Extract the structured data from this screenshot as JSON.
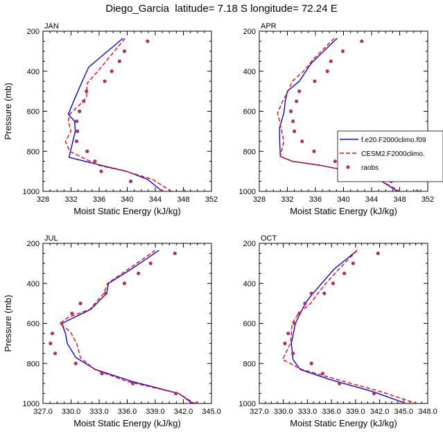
{
  "title": {
    "station": "Diego_Garcia",
    "latitude_label": "latitude=",
    "latitude_value": "7.18 S",
    "longitude_label": "longitude=",
    "longitude_value": "72.24 E"
  },
  "legend": {
    "location": "right, overlapping the APR panel",
    "entries": [
      {
        "label": "f.e20.F2000climo.f09",
        "style": "solid-line",
        "color": "#0000ff"
      },
      {
        "label": "CESM2.F2000climo.",
        "style": "dashed-line",
        "color": "#ff0000"
      },
      {
        "label": "raobs",
        "style": "dot",
        "color": "#b03060"
      }
    ]
  },
  "chart_data": [
    {
      "type": "line",
      "title": "JAN",
      "xlabel": "Moist Static Energy (kJ/kg)",
      "ylabel": "Pressure (mb)",
      "xlim": [
        328,
        352
      ],
      "ylim": [
        200,
        1000
      ],
      "y_inverted": true,
      "xticks": [
        328,
        332,
        336,
        340,
        344,
        348,
        352
      ],
      "xtick_labels": [
        "328",
        "332",
        "336",
        "340",
        "344",
        "348",
        "352"
      ],
      "yticks": [
        200,
        400,
        600,
        800,
        1000
      ],
      "ytick_labels": [
        "200",
        "400",
        "600",
        "800",
        "1000"
      ],
      "series": [
        {
          "name": "f.e20.F2000climo.f09",
          "style": "solid",
          "color": "#0000ff",
          "x": [
            339.4,
            334.5,
            333.6,
            332.6,
            331.6,
            332.5,
            332.6,
            331.7,
            336.3,
            339.9,
            342.9,
            345.0
          ],
          "y": [
            235,
            380,
            450,
            530,
            615,
            650,
            700,
            830,
            870,
            900,
            940,
            1000
          ]
        },
        {
          "name": "CESM2.F2000climo.",
          "style": "dashed",
          "color": "#ff0000",
          "x": [
            339.7,
            337.7,
            335.8,
            334.3,
            334.2,
            333.3,
            331.8,
            331.6,
            332.0,
            331.2,
            331.8,
            335.9,
            339.8,
            343.6,
            346.3
          ],
          "y": [
            235,
            320,
            400,
            460,
            530,
            565,
            615,
            650,
            700,
            750,
            800,
            870,
            900,
            940,
            1000
          ]
        },
        {
          "name": "raobs",
          "style": "markers",
          "color": "#b03060",
          "x": [
            342.9,
            339.6,
            338.9,
            337.8,
            336.8,
            334.2,
            333.8,
            333.2,
            332.8,
            332.9,
            332.8,
            334.3,
            335.4,
            336.3,
            340.5,
            344.9,
            348.1
          ],
          "y": [
            250,
            300,
            350,
            400,
            450,
            500,
            550,
            600,
            650,
            700,
            750,
            800,
            850,
            900,
            950,
            1000,
            1000
          ]
        }
      ]
    },
    {
      "type": "line",
      "title": "APR",
      "xlabel": "Moist Static Energy (kJ/kg)",
      "ylabel": "",
      "xlim": [
        328,
        352
      ],
      "ylim": [
        200,
        1000
      ],
      "y_inverted": true,
      "xticks": [
        328,
        332,
        336,
        340,
        344,
        348,
        352
      ],
      "xtick_labels": [
        "328",
        "332",
        "336",
        "340",
        "344",
        "348",
        "352"
      ],
      "yticks": [
        200,
        400,
        600,
        800,
        1000
      ],
      "ytick_labels": [
        "200",
        "400",
        "600",
        "800",
        "1000"
      ],
      "series": [
        {
          "name": "f.e20.F2000climo.f09",
          "style": "solid",
          "color": "#0000ff",
          "x": [
            339.1,
            335.4,
            333.7,
            332.0,
            331.7,
            331.5,
            330.9,
            330.9,
            331.0,
            332.7,
            336.7,
            341.0,
            345.0,
            347.7
          ],
          "y": [
            235,
            360,
            450,
            500,
            550,
            610,
            680,
            750,
            825,
            850,
            870,
            900,
            940,
            1000
          ]
        },
        {
          "name": "CESM2.F2000climo.",
          "style": "dashed",
          "color": "#ff0000",
          "x": [
            338.7,
            335.7,
            334.3,
            332.7,
            332.1,
            331.2,
            330.6,
            330.9,
            331.5,
            331.0,
            332.7,
            336.7,
            341.0,
            345.0,
            348.0
          ],
          "y": [
            235,
            340,
            400,
            450,
            500,
            560,
            610,
            650,
            750,
            825,
            850,
            870,
            900,
            940,
            1000
          ]
        },
        {
          "name": "raobs",
          "style": "markers",
          "color": "#b03060",
          "x": [
            342.6,
            339.9,
            338.2,
            337.7,
            335.9,
            333.7,
            333.3,
            332.5,
            332.8,
            333.0,
            334.1,
            335.8,
            338.8,
            342.8,
            346.8,
            350.5
          ],
          "y": [
            250,
            300,
            350,
            400,
            450,
            500,
            550,
            600,
            650,
            700,
            750,
            800,
            850,
            900,
            950,
            1000
          ]
        }
      ]
    },
    {
      "type": "line",
      "title": "JUL",
      "xlabel": "Moist Static Energy (kJ/kg)",
      "ylabel": "Pressure (mb)",
      "xlim": [
        327,
        345
      ],
      "ylim": [
        200,
        1000
      ],
      "y_inverted": true,
      "xticks": [
        327,
        330,
        333,
        336,
        339,
        342,
        345
      ],
      "xtick_labels": [
        "327.0",
        "330.0",
        "333.0",
        "336.0",
        "339.0",
        "342.0",
        "345.0"
      ],
      "yticks": [
        200,
        400,
        600,
        800,
        1000
      ],
      "ytick_labels": [
        "200",
        "400",
        "600",
        "800",
        "1000"
      ],
      "series": [
        {
          "name": "f.e20.F2000climo.f09",
          "style": "solid",
          "color": "#0000ff",
          "x": [
            339.4,
            336.4,
            334.0,
            333.8,
            332.1,
            329.9,
            329.0,
            329.4,
            329.6,
            330.5,
            332.6,
            336.5,
            341.5,
            343.0
          ],
          "y": [
            235,
            330,
            400,
            450,
            530,
            580,
            600,
            650,
            700,
            770,
            830,
            890,
            950,
            1000
          ]
        },
        {
          "name": "CESM2.F2000climo.",
          "style": "dashed",
          "color": "#ff0000",
          "x": [
            339.0,
            336.4,
            333.9,
            333.5,
            332.0,
            329.7,
            328.8,
            329.9,
            330.6,
            331.0,
            332.5,
            336.0,
            341.5,
            343.2
          ],
          "y": [
            235,
            320,
            400,
            450,
            530,
            570,
            600,
            640,
            700,
            770,
            830,
            890,
            950,
            1000
          ]
        },
        {
          "name": "raobs",
          "style": "markers",
          "color": "#b03060",
          "x": [
            341.1,
            338.5,
            337.2,
            335.7,
            333.7,
            331.0,
            330.1,
            329.0,
            328.0,
            327.8,
            328.3,
            330.5,
            333.3,
            336.6,
            341.2,
            343.4
          ],
          "y": [
            250,
            300,
            350,
            400,
            450,
            500,
            550,
            600,
            650,
            700,
            750,
            800,
            850,
            900,
            950,
            1000
          ]
        }
      ]
    },
    {
      "type": "line",
      "title": "OCT",
      "xlabel": "Moist Static Energy (kJ/kg)",
      "ylabel": "",
      "xlim": [
        327,
        348
      ],
      "ylim": [
        200,
        1000
      ],
      "y_inverted": true,
      "xticks": [
        327,
        330,
        333,
        336,
        339,
        342,
        345,
        348
      ],
      "xtick_labels": [
        "327.0",
        "330.0",
        "333.0",
        "336.0",
        "339.0",
        "342.0",
        "345.0",
        "348.0"
      ],
      "yticks": [
        200,
        400,
        600,
        800,
        1000
      ],
      "ytick_labels": [
        "200",
        "400",
        "600",
        "800",
        "1000"
      ],
      "series": [
        {
          "name": "f.e20.F2000climo.f09",
          "style": "solid",
          "color": "#0000ff",
          "x": [
            339.2,
            336.3,
            333.7,
            332.9,
            332.1,
            331.5,
            331.0,
            331.2,
            332.1,
            335.8,
            341.1,
            345.3
          ],
          "y": [
            235,
            330,
            450,
            490,
            550,
            600,
            700,
            780,
            830,
            880,
            940,
            1000
          ]
        },
        {
          "name": "CESM2.F2000climo.",
          "style": "dashed",
          "color": "#ff0000",
          "x": [
            339.2,
            336.9,
            335.3,
            334.3,
            333.4,
            331.9,
            331.1,
            330.9,
            329.9,
            332.3,
            336.7,
            342.1,
            346.6
          ],
          "y": [
            235,
            330,
            400,
            450,
            500,
            550,
            600,
            700,
            780,
            830,
            880,
            940,
            1000
          ]
        },
        {
          "name": "raobs",
          "style": "markers",
          "color": "#b03060",
          "x": [
            341.8,
            338.7,
            337.6,
            336.2,
            335.1,
            333.5,
            332.7,
            332.0,
            331.4,
            330.6,
            330.2,
            331.2,
            333.5,
            334.9,
            337.0,
            341.3,
            345.0
          ],
          "y": [
            250,
            300,
            350,
            400,
            450,
            450,
            500,
            550,
            600,
            650,
            700,
            750,
            800,
            850,
            900,
            950,
            1000
          ]
        }
      ]
    }
  ]
}
